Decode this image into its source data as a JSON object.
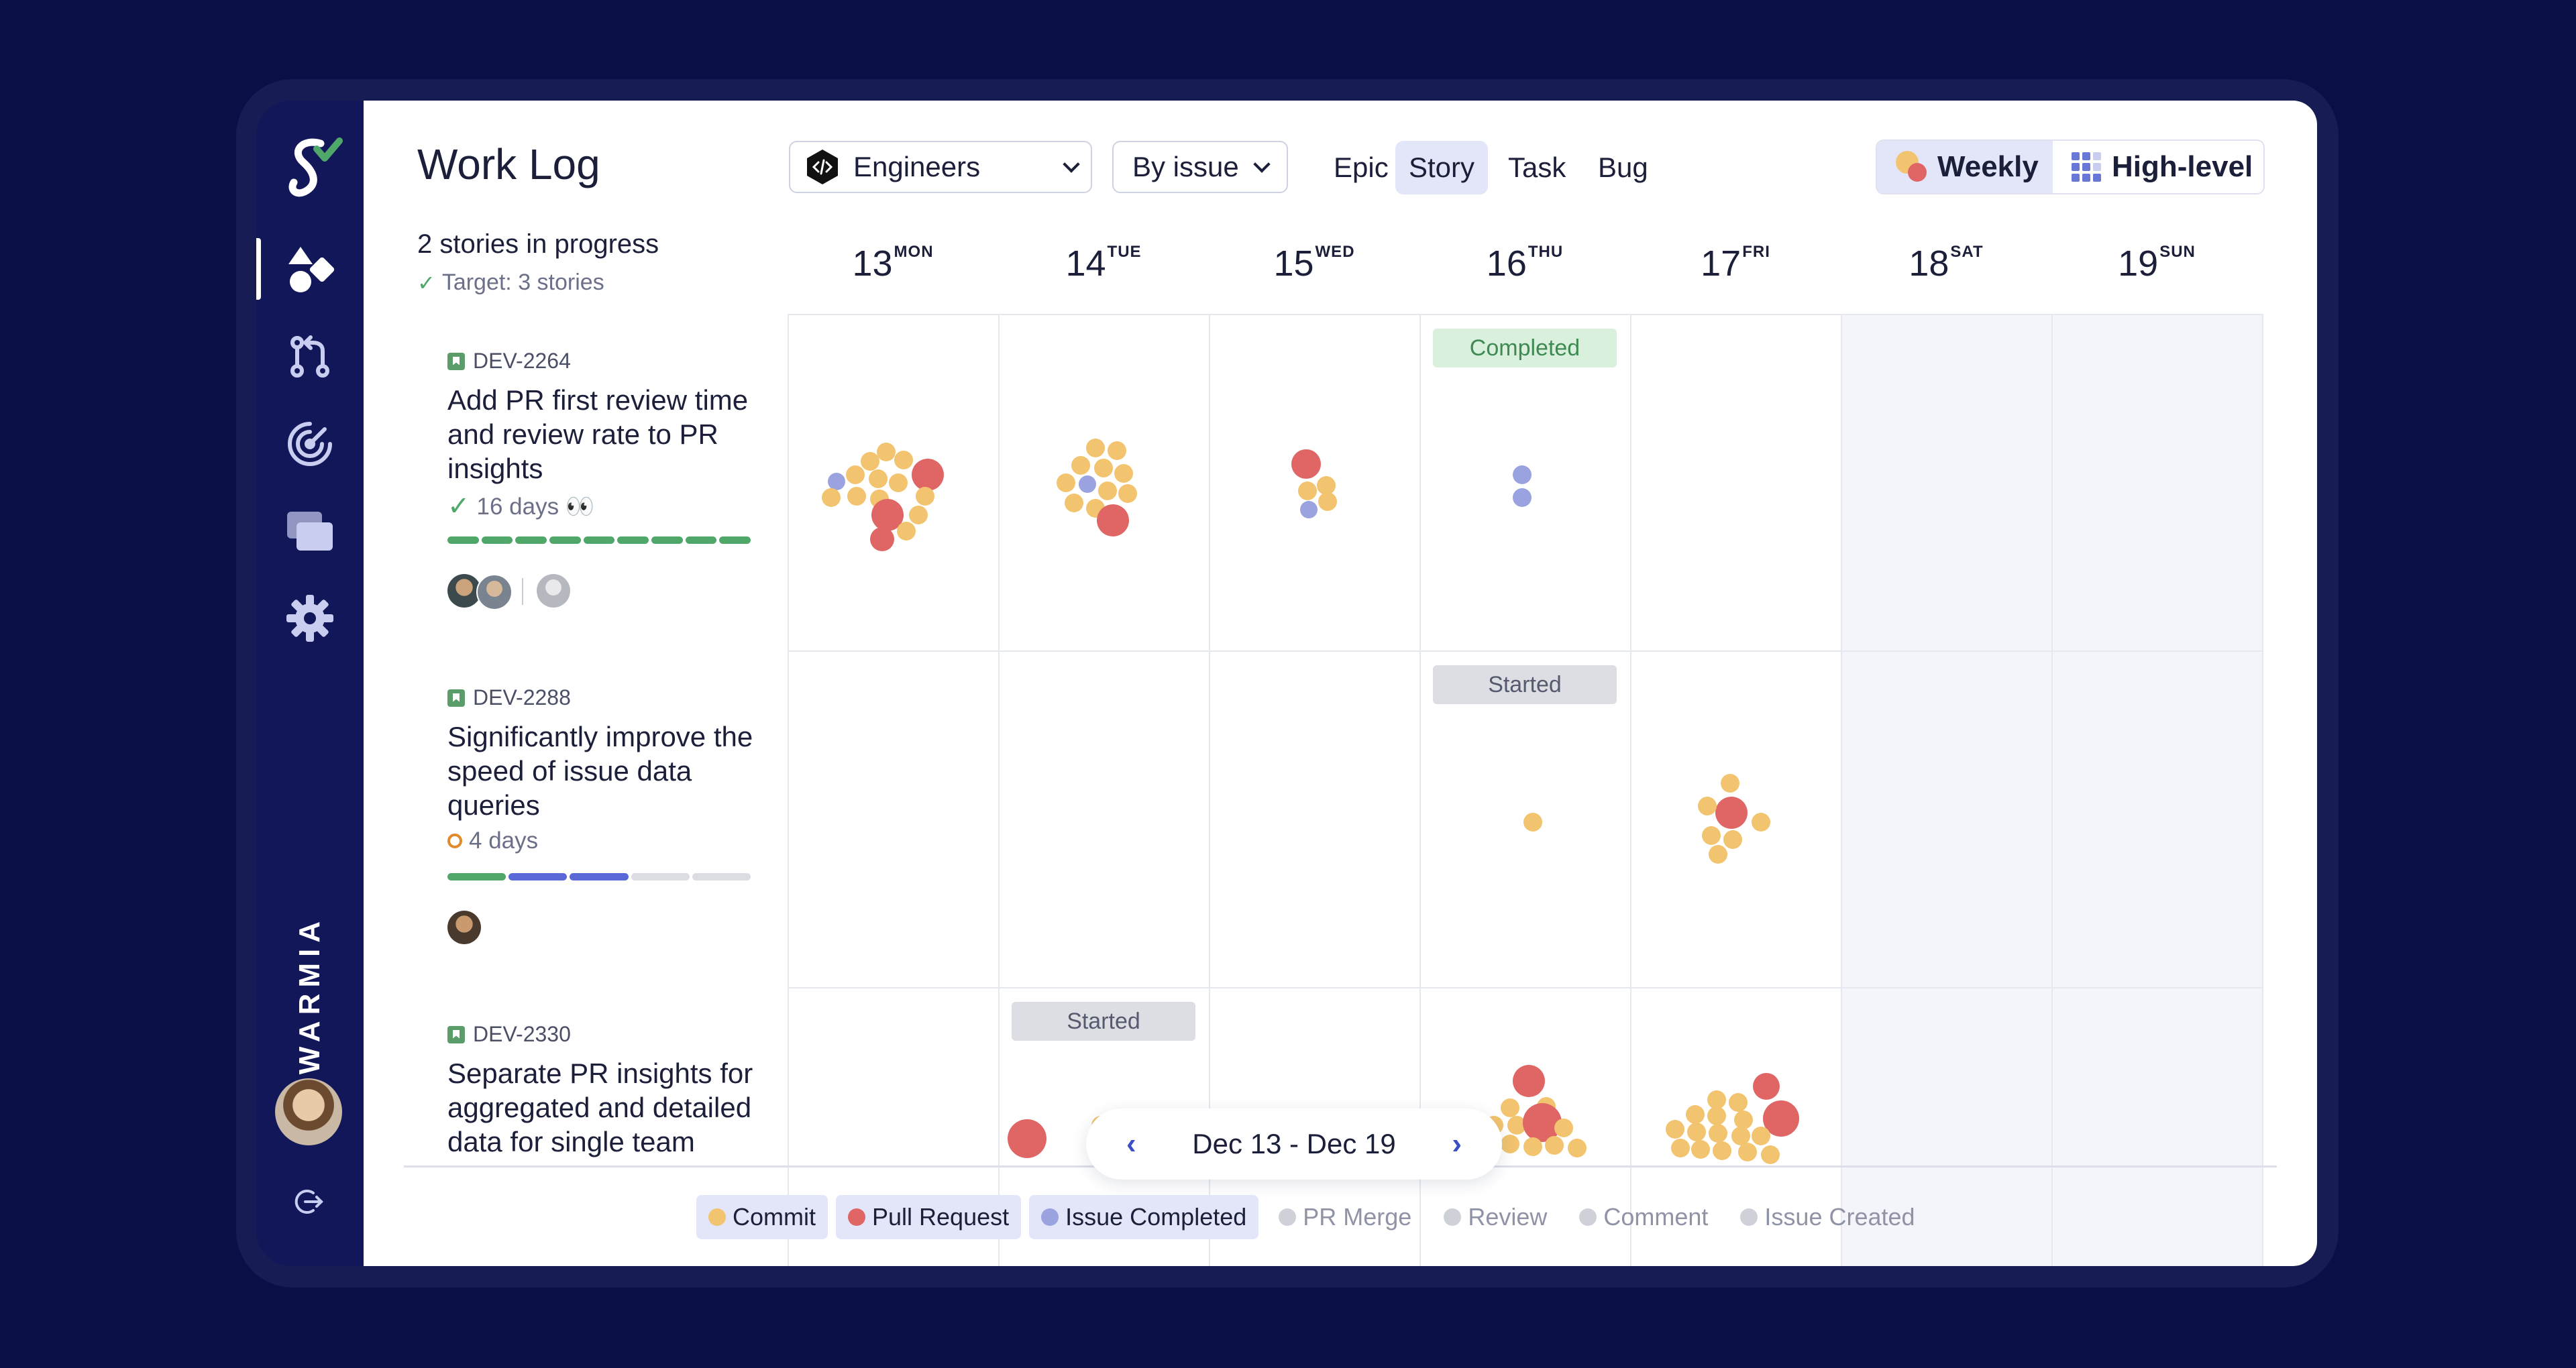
{
  "sidebar": {
    "brand": "SWARMIA",
    "nav": [
      "work-log-icon",
      "pull-request-icon",
      "radar-icon",
      "cards-icon",
      "gear-icon"
    ]
  },
  "header": {
    "title": "Work Log",
    "team_dropdown": "Engineers",
    "group_dropdown": "By issue",
    "type_tabs": [
      "Epic",
      "Story",
      "Task",
      "Bug"
    ],
    "active_type": "Story",
    "views": [
      "Weekly",
      "High-level"
    ],
    "active_view": "Weekly"
  },
  "summary": {
    "in_progress": "2 stories in progress",
    "target": "Target: 3 stories"
  },
  "issues": [
    {
      "key": "DEV-2264",
      "title": "Add PR first review time and review rate to PR insights",
      "duration": "16 days 👀",
      "status": "done"
    },
    {
      "key": "DEV-2288",
      "title": "Significantly improve the speed of issue data queries",
      "duration": "4 days",
      "status": "in-progress"
    },
    {
      "key": "DEV-2330",
      "title": "Separate PR insights for aggregated and detailed data for single team",
      "duration": "",
      "status": "in-progress"
    }
  ],
  "days": [
    {
      "num": "13",
      "dow": "MON"
    },
    {
      "num": "14",
      "dow": "TUE"
    },
    {
      "num": "15",
      "dow": "WED"
    },
    {
      "num": "16",
      "dow": "THU"
    },
    {
      "num": "17",
      "dow": "FRI"
    },
    {
      "num": "18",
      "dow": "SAT"
    },
    {
      "num": "19",
      "dow": "SUN"
    }
  ],
  "status_tags": {
    "completed": "Completed",
    "started": "Started"
  },
  "date_nav": {
    "range": "Dec 13 - Dec 19"
  },
  "legend": [
    {
      "label": "Commit",
      "on": true,
      "color": "#f2c46f"
    },
    {
      "label": "Pull Request",
      "on": true,
      "color": "#e06666"
    },
    {
      "label": "Issue Completed",
      "on": true,
      "color": "#9aa3e0"
    },
    {
      "label": "PR Merge",
      "on": false,
      "color": "#cfd1d8"
    },
    {
      "label": "Review",
      "on": false,
      "color": "#cfd1d8"
    },
    {
      "label": "Comment",
      "on": false,
      "color": "#cfd1d8"
    },
    {
      "label": "Issue Created",
      "on": false,
      "color": "#cfd1d8"
    }
  ],
  "colors": {
    "background": "#0a0f45",
    "sidebar": "#12175a",
    "commit": "#f2c46f",
    "pull_request": "#e06666",
    "issue_completed": "#9aa3e0",
    "accent": "#3c4fc4"
  }
}
